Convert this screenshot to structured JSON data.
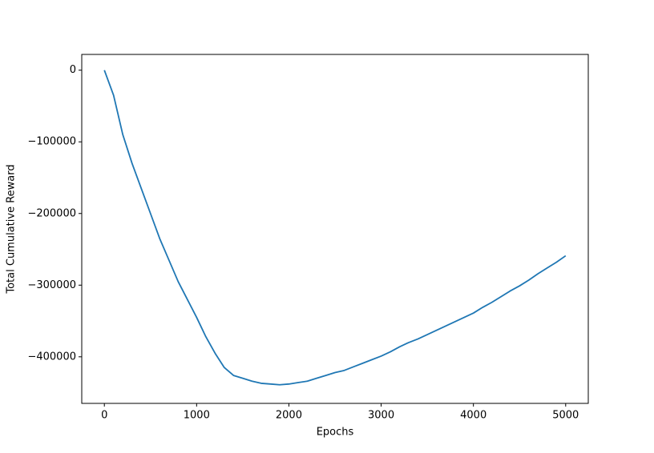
{
  "chart_data": {
    "type": "line",
    "xlabel": "Epochs",
    "ylabel": "Total Cumulative Reward",
    "x": [
      0,
      100,
      200,
      300,
      400,
      500,
      600,
      700,
      800,
      900,
      1000,
      1100,
      1200,
      1300,
      1400,
      1500,
      1600,
      1700,
      1800,
      1900,
      2000,
      2100,
      2200,
      2300,
      2400,
      2500,
      2600,
      2700,
      2800,
      2900,
      3000,
      3100,
      3200,
      3300,
      3400,
      3500,
      3600,
      3700,
      3800,
      3900,
      4000,
      4100,
      4200,
      4300,
      4400,
      4500,
      4600,
      4700,
      4800,
      4900,
      5000
    ],
    "series": [
      {
        "name": "Total Cumulative Reward",
        "color": "#1f77b4",
        "values": [
          0,
          -35000,
          -90000,
          -130000,
          -165000,
          -200000,
          -235000,
          -265000,
          -295000,
          -320000,
          -345000,
          -372000,
          -395000,
          -415000,
          -426000,
          -430000,
          -434000,
          -437000,
          -438000,
          -439000,
          -438000,
          -436000,
          -434000,
          -430000,
          -426000,
          -422000,
          -419000,
          -414000,
          -409000,
          -404000,
          -399000,
          -393000,
          -386000,
          -380000,
          -375000,
          -369000,
          -363000,
          -357000,
          -351000,
          -345000,
          -339000,
          -331000,
          -324000,
          -316000,
          -308000,
          -301000,
          -293000,
          -284000,
          -276000,
          -268000,
          -259000
        ]
      }
    ],
    "xlim": [
      -245,
      5245
    ],
    "xticks": [
      0,
      1000,
      2000,
      3000,
      4000,
      5000
    ],
    "ylim": [
      -465000,
      22000
    ],
    "yticks": [
      {
        "value": -400000,
        "label": "−400000"
      },
      {
        "value": -300000,
        "label": "−300000"
      },
      {
        "value": -200000,
        "label": "−200000"
      },
      {
        "value": -100000,
        "label": "−100000"
      },
      0
    ],
    "grid": false
  }
}
